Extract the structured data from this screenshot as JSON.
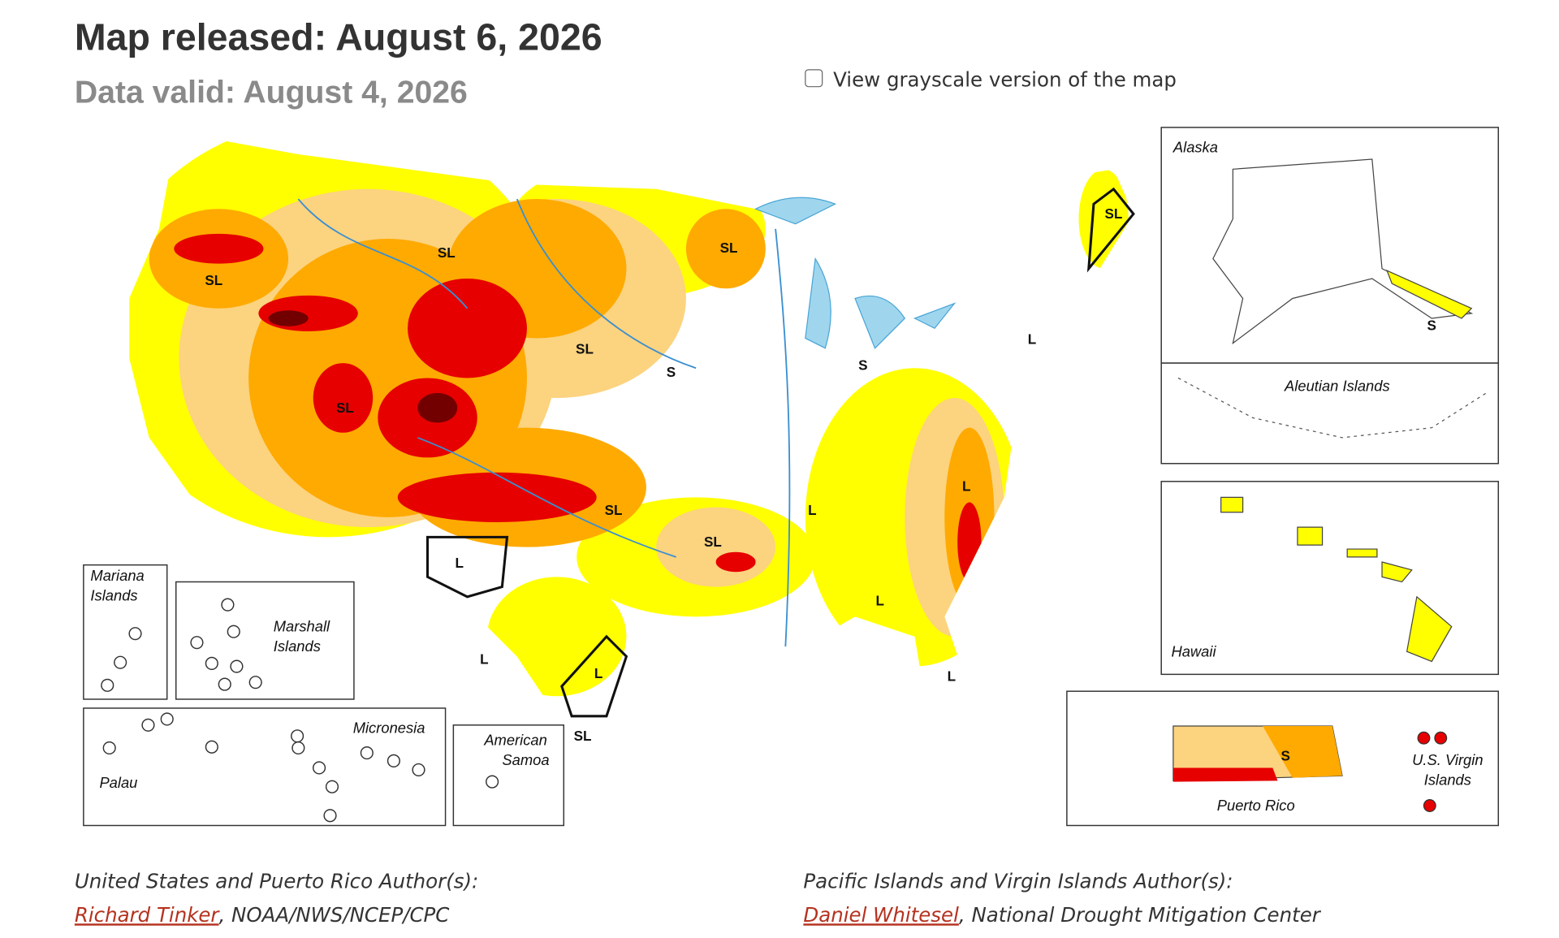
{
  "header": {
    "title": "Map released: August 6, 2026",
    "subtitle": "Data valid: August 4, 2026"
  },
  "grayscale_toggle": {
    "label": "View grayscale version of the map",
    "checked": false
  },
  "map": {
    "impact_labels": [
      "SL",
      "SL",
      "SL",
      "SL",
      "SL",
      "S",
      "S",
      "L",
      "SL",
      "L",
      "L",
      "SL",
      "SL",
      "L",
      "L",
      "L",
      "L",
      "L",
      "SL",
      "S",
      "S"
    ],
    "insets": {
      "alaska": "Alaska",
      "aleutian": "Aleutian Islands",
      "hawaii": "Hawaii",
      "puerto_rico": "Puerto Rico",
      "virgin_islands": [
        "U.S. Virgin",
        "Islands"
      ],
      "mariana": [
        "Mariana",
        "Islands"
      ],
      "marshall": [
        "Marshall",
        "Islands"
      ],
      "micronesia": "Micronesia",
      "palau": "Palau",
      "samoa": [
        "American",
        "Samoa"
      ]
    }
  },
  "authors": [
    {
      "heading": "United States and Puerto Rico Author(s):",
      "name": "Richard Tinker",
      "affiliation": ", NOAA/NWS/NCEP/CPC"
    },
    {
      "heading": "Pacific Islands and Virgin Islands Author(s):",
      "name": "Daniel Whitesel",
      "affiliation": ", National Drought Mitigation Center"
    }
  ]
}
